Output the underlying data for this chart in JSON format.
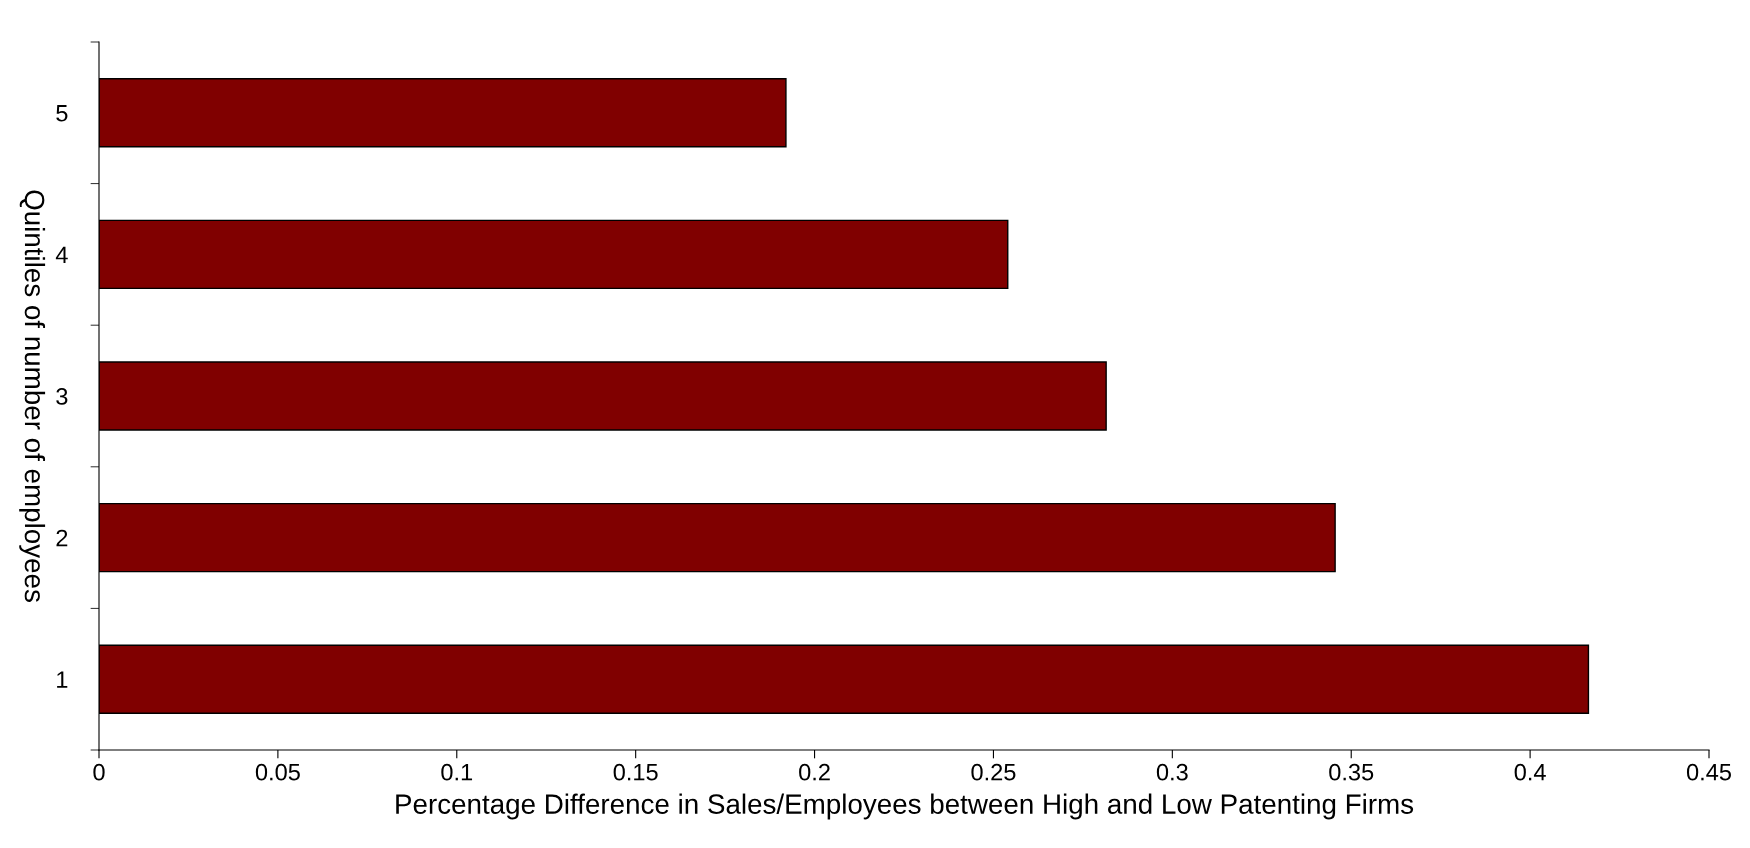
{
  "chart_data": {
    "type": "bar",
    "orientation": "horizontal",
    "xlabel": "Percentage Difference in Sales/Employees between High and Low Patenting Firms",
    "ylabel": "Quintiles of number of employees",
    "categories": [
      "5",
      "4",
      "3",
      "2",
      "1"
    ],
    "values": [
      0.192,
      0.254,
      0.2815,
      0.3455,
      0.4163
    ],
    "color": "#800000",
    "xlim": [
      0,
      0.45
    ],
    "xticks": [
      0,
      0.05,
      0.1,
      0.15,
      0.2,
      0.25,
      0.3,
      0.35,
      0.4,
      0.45
    ],
    "grid": false,
    "legend": false
  }
}
